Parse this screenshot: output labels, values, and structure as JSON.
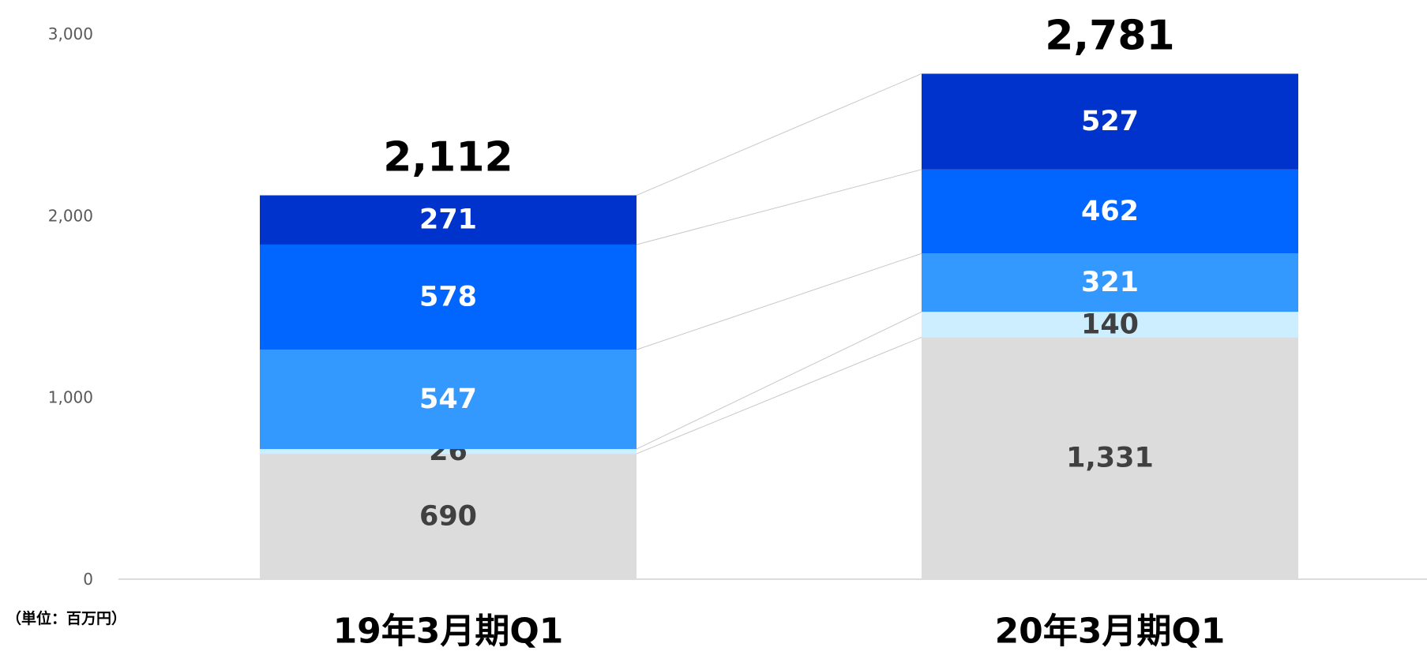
{
  "chart_data": {
    "type": "stacked_bar",
    "unit_note": "（単位：百万円）",
    "categories": [
      "19年3月期Q1",
      "20年3月期Q1"
    ],
    "series": [
      {
        "color": "#dcdcdc",
        "label_color": "#404040",
        "values": [
          690,
          1331
        ],
        "value_labels": [
          "690",
          "1,331"
        ]
      },
      {
        "color": "#cceeff",
        "label_color": "#404040",
        "values": [
          26,
          140
        ]
      },
      {
        "color": "#3399ff",
        "label_color": "#ffffff",
        "values": [
          547,
          321
        ]
      },
      {
        "color": "#0066ff",
        "label_color": "#ffffff",
        "values": [
          578,
          462
        ]
      },
      {
        "color": "#0033cc",
        "label_color": "#ffffff",
        "values": [
          271,
          527
        ]
      }
    ],
    "totals": {
      "values": [
        2112,
        2781
      ],
      "value_labels": [
        "2,112",
        "2,781"
      ]
    },
    "ylim": [
      0,
      3000
    ],
    "yticks": [
      0,
      {
        "value": 1000,
        "label": "1,000"
      },
      {
        "value": 2000,
        "label": "2,000"
      },
      {
        "value": 3000,
        "label": "3,000"
      }
    ],
    "connector_color": "#c8c8c8"
  }
}
